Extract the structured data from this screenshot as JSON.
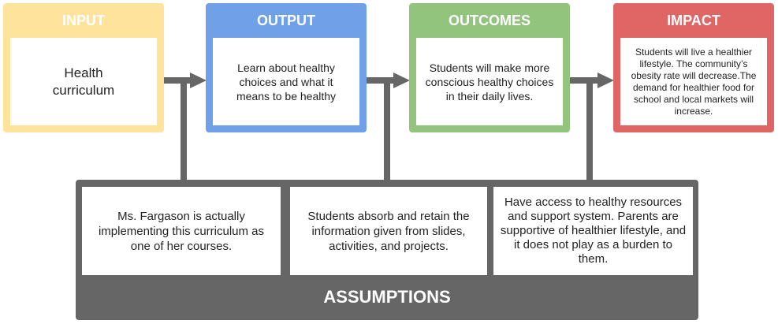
{
  "colors": {
    "input": "#fde49a",
    "output": "#6fa0e8",
    "outcomes": "#93c47d",
    "impact": "#e06666",
    "connector": "#666666",
    "assumptions": "#666666"
  },
  "boxes": {
    "input": {
      "title": "INPUT",
      "text": "Health curriculum"
    },
    "output": {
      "title": "OUTPUT",
      "text": "Learn about healthy choices and what it means to be healthy"
    },
    "outcomes": {
      "title": "OUTCOMES",
      "text": "Students will make more conscious healthy choices in their daily lives."
    },
    "impact": {
      "title": "IMPACT",
      "text": "Students will live a healthier lifestyle. The community’s obesity rate will decrease.The demand for healthier food for school and local markets will increase."
    }
  },
  "assumptions": {
    "title": "ASSUMPTIONS",
    "items": [
      "Ms. Fargason is actually implementing this curriculum as one of her courses.",
      "Students absorb and retain the information given from slides, activities, and projects.",
      "Have access to healthy resources and support system. Parents are supportive of healthier lifestyle, and it does not play as a burden to them."
    ]
  }
}
